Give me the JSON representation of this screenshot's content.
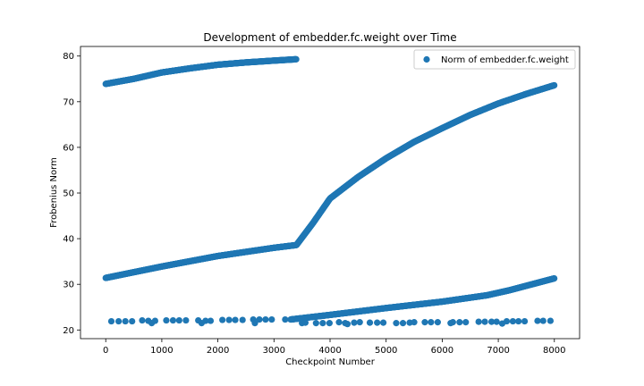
{
  "chart_data": {
    "type": "scatter",
    "title": "Development of embedder.fc.weight over Time",
    "xlabel": "Checkpoint Number",
    "ylabel": "Frobenius Norm",
    "xlim": [
      -450,
      8450
    ],
    "ylim": [
      18.1,
      82.1
    ],
    "xticks": [
      0,
      1000,
      2000,
      3000,
      4000,
      5000,
      6000,
      7000,
      8000
    ],
    "yticks": [
      20,
      30,
      40,
      50,
      60,
      70,
      80
    ],
    "legend": {
      "position": "top-right"
    },
    "grid": false,
    "series": [
      {
        "name": "Norm of embedder.fc.weight",
        "color": "#1f77b4",
        "curves": [
          {
            "x": [
              0,
              500,
              1000,
              1500,
              2000,
              2500,
              3000,
              3400
            ],
            "y": [
              73.9,
              75.0,
              76.4,
              77.3,
              78.1,
              78.6,
              79.0,
              79.3
            ]
          },
          {
            "x": [
              0,
              1000,
              2000,
              3000,
              3400,
              3700,
              4000,
              4500,
              5000,
              5500,
              6000,
              6500,
              7000,
              7500,
              8000
            ],
            "y": [
              31.4,
              33.9,
              36.2,
              38.0,
              38.6,
              43.5,
              48.8,
              53.5,
              57.6,
              61.2,
              64.2,
              67.1,
              69.6,
              71.7,
              73.6
            ]
          },
          {
            "x": [
              3300,
              4000,
              5000,
              6000,
              6800,
              7200,
              7600,
              8000
            ],
            "y": [
              22.3,
              23.3,
              24.8,
              26.2,
              27.6,
              28.7,
              30.0,
              31.3
            ]
          }
        ],
        "points": [
          {
            "x": 100,
            "y": 21.9
          },
          {
            "x": 230,
            "y": 21.9
          },
          {
            "x": 350,
            "y": 21.9
          },
          {
            "x": 470,
            "y": 21.9
          },
          {
            "x": 650,
            "y": 22.1
          },
          {
            "x": 760,
            "y": 22.0
          },
          {
            "x": 820,
            "y": 21.5
          },
          {
            "x": 880,
            "y": 22.0
          },
          {
            "x": 1080,
            "y": 22.1
          },
          {
            "x": 1200,
            "y": 22.1
          },
          {
            "x": 1310,
            "y": 22.1
          },
          {
            "x": 1430,
            "y": 22.1
          },
          {
            "x": 1650,
            "y": 22.1
          },
          {
            "x": 1710,
            "y": 21.5
          },
          {
            "x": 1780,
            "y": 22.0
          },
          {
            "x": 1870,
            "y": 22.0
          },
          {
            "x": 2080,
            "y": 22.2
          },
          {
            "x": 2200,
            "y": 22.2
          },
          {
            "x": 2310,
            "y": 22.2
          },
          {
            "x": 2440,
            "y": 22.2
          },
          {
            "x": 2630,
            "y": 22.3
          },
          {
            "x": 2660,
            "y": 21.5
          },
          {
            "x": 2740,
            "y": 22.3
          },
          {
            "x": 2850,
            "y": 22.3
          },
          {
            "x": 2960,
            "y": 22.3
          },
          {
            "x": 3200,
            "y": 22.3
          },
          {
            "x": 3300,
            "y": 22.3
          },
          {
            "x": 3500,
            "y": 21.5
          },
          {
            "x": 3560,
            "y": 21.6
          },
          {
            "x": 3750,
            "y": 21.5
          },
          {
            "x": 3870,
            "y": 21.5
          },
          {
            "x": 3990,
            "y": 21.5
          },
          {
            "x": 4160,
            "y": 21.7
          },
          {
            "x": 4270,
            "y": 21.5
          },
          {
            "x": 4310,
            "y": 21.3
          },
          {
            "x": 4430,
            "y": 21.6
          },
          {
            "x": 4530,
            "y": 21.7
          },
          {
            "x": 4710,
            "y": 21.6
          },
          {
            "x": 4840,
            "y": 21.6
          },
          {
            "x": 4950,
            "y": 21.6
          },
          {
            "x": 5180,
            "y": 21.5
          },
          {
            "x": 5300,
            "y": 21.5
          },
          {
            "x": 5420,
            "y": 21.6
          },
          {
            "x": 5500,
            "y": 21.7
          },
          {
            "x": 5690,
            "y": 21.7
          },
          {
            "x": 5800,
            "y": 21.7
          },
          {
            "x": 5920,
            "y": 21.7
          },
          {
            "x": 6150,
            "y": 21.5
          },
          {
            "x": 6190,
            "y": 21.7
          },
          {
            "x": 6310,
            "y": 21.7
          },
          {
            "x": 6420,
            "y": 21.7
          },
          {
            "x": 6650,
            "y": 21.8
          },
          {
            "x": 6760,
            "y": 21.8
          },
          {
            "x": 6880,
            "y": 21.8
          },
          {
            "x": 6970,
            "y": 21.8
          },
          {
            "x": 7070,
            "y": 21.4
          },
          {
            "x": 7150,
            "y": 21.9
          },
          {
            "x": 7260,
            "y": 21.9
          },
          {
            "x": 7360,
            "y": 21.9
          },
          {
            "x": 7470,
            "y": 21.9
          },
          {
            "x": 7700,
            "y": 22.0
          },
          {
            "x": 7800,
            "y": 22.0
          },
          {
            "x": 7930,
            "y": 22.0
          }
        ]
      }
    ]
  }
}
